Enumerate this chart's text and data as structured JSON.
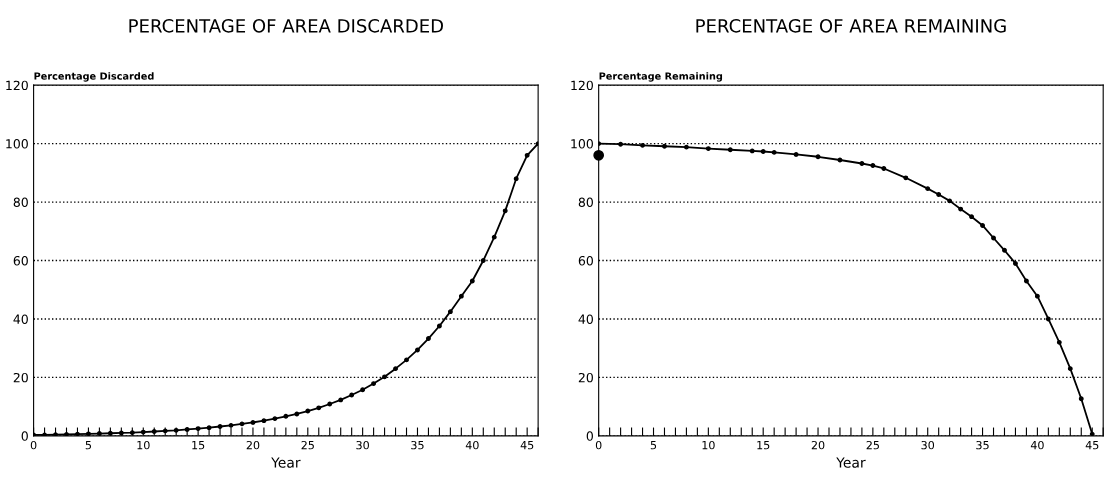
{
  "chart_data": [
    {
      "type": "line",
      "title": "PERCENTAGE OF AREA DISCARDED",
      "ylabel": "Percentage Discarded",
      "xlabel": "Year",
      "marker": "circle",
      "grid": "y",
      "xlim": [
        0,
        46
      ],
      "ylim": [
        0,
        120
      ],
      "xticks": [
        0,
        {
          "value": 1,
          "label": null
        },
        {
          "value": 2,
          "label": null
        },
        {
          "value": 3,
          "label": null
        },
        {
          "value": 4,
          "label": null
        },
        5,
        {
          "value": 6,
          "label": null
        },
        {
          "value": 7,
          "label": null
        },
        {
          "value": 8,
          "label": null
        },
        {
          "value": 9,
          "label": null
        },
        10,
        {
          "value": 11,
          "label": null
        },
        {
          "value": 12,
          "label": null
        },
        {
          "value": 13,
          "label": null
        },
        {
          "value": 14,
          "label": null
        },
        15,
        {
          "value": 16,
          "label": null
        },
        {
          "value": 17,
          "label": null
        },
        {
          "value": 18,
          "label": null
        },
        {
          "value": 19,
          "label": null
        },
        20,
        {
          "value": 21,
          "label": null
        },
        {
          "value": 22,
          "label": null
        },
        {
          "value": 23,
          "label": null
        },
        {
          "value": 24,
          "label": null
        },
        25,
        {
          "value": 26,
          "label": null
        },
        {
          "value": 27,
          "label": null
        },
        {
          "value": 28,
          "label": null
        },
        {
          "value": 29,
          "label": null
        },
        30,
        {
          "value": 31,
          "label": null
        },
        {
          "value": 32,
          "label": null
        },
        {
          "value": 33,
          "label": null
        },
        {
          "value": 34,
          "label": null
        },
        35,
        {
          "value": 36,
          "label": null
        },
        {
          "value": 37,
          "label": null
        },
        {
          "value": 38,
          "label": null
        },
        {
          "value": 39,
          "label": null
        },
        40,
        {
          "value": 41,
          "label": null
        },
        {
          "value": 42,
          "label": null
        },
        {
          "value": 43,
          "label": null
        },
        {
          "value": 44,
          "label": null
        },
        45,
        {
          "value": 46,
          "label": null
        }
      ],
      "yticks": [
        0,
        20,
        40,
        60,
        80,
        100,
        120
      ],
      "series": [
        {
          "color": "#000000",
          "x": [
            0,
            1,
            2,
            3,
            4,
            5,
            6,
            7,
            8,
            9,
            10,
            11,
            12,
            13,
            14,
            15,
            16,
            17,
            18,
            19,
            20,
            21,
            22,
            23,
            24,
            25,
            26,
            27,
            28,
            29,
            30,
            31,
            32,
            33,
            34,
            35,
            36,
            37,
            38,
            39,
            40,
            41,
            42,
            43,
            44,
            45,
            46
          ],
          "values": [
            0.3,
            0.3,
            0.4,
            0.5,
            0.6,
            0.7,
            0.8,
            0.9,
            1,
            1.1,
            1.3,
            1.5,
            1.7,
            1.9,
            2.2,
            2.5,
            2.8,
            3.2,
            3.6,
            4.1,
            4.6,
            5.2,
            5.9,
            6.7,
            7.5,
            8.5,
            9.6,
            10.9,
            12.3,
            14,
            15.8,
            17.9,
            20.2,
            23,
            26,
            29.4,
            33.3,
            37.6,
            42.5,
            47.8,
            53,
            60,
            68,
            77,
            88,
            96,
            100
          ]
        }
      ]
    },
    {
      "type": "line",
      "title": "PERCENTAGE OF AREA REMAINING",
      "ylabel": "Percentage Remaining",
      "xlabel": "Year",
      "marker": "circle",
      "grid": "y",
      "xlim": [
        0,
        46
      ],
      "ylim": [
        0,
        120
      ],
      "xticks": [
        0,
        {
          "value": 1,
          "label": null
        },
        {
          "value": 2,
          "label": null
        },
        {
          "value": 3,
          "label": null
        },
        {
          "value": 4,
          "label": null
        },
        5,
        {
          "value": 6,
          "label": null
        },
        {
          "value": 7,
          "label": null
        },
        {
          "value": 8,
          "label": null
        },
        {
          "value": 9,
          "label": null
        },
        10,
        {
          "value": 11,
          "label": null
        },
        {
          "value": 12,
          "label": null
        },
        {
          "value": 13,
          "label": null
        },
        {
          "value": 14,
          "label": null
        },
        15,
        {
          "value": 16,
          "label": null
        },
        {
          "value": 17,
          "label": null
        },
        {
          "value": 18,
          "label": null
        },
        {
          "value": 19,
          "label": null
        },
        20,
        {
          "value": 21,
          "label": null
        },
        {
          "value": 22,
          "label": null
        },
        {
          "value": 23,
          "label": null
        },
        {
          "value": 24,
          "label": null
        },
        25,
        {
          "value": 26,
          "label": null
        },
        {
          "value": 27,
          "label": null
        },
        {
          "value": 28,
          "label": null
        },
        {
          "value": 29,
          "label": null
        },
        30,
        {
          "value": 31,
          "label": null
        },
        {
          "value": 32,
          "label": null
        },
        {
          "value": 33,
          "label": null
        },
        {
          "value": 34,
          "label": null
        },
        35,
        {
          "value": 36,
          "label": null
        },
        {
          "value": 37,
          "label": null
        },
        {
          "value": 38,
          "label": null
        },
        {
          "value": 39,
          "label": null
        },
        40,
        {
          "value": 41,
          "label": null
        },
        {
          "value": 42,
          "label": null
        },
        {
          "value": 43,
          "label": null
        },
        {
          "value": 44,
          "label": null
        },
        45,
        {
          "value": 46,
          "label": null
        }
      ],
      "yticks": [
        0,
        20,
        40,
        60,
        80,
        100,
        120
      ],
      "series": [
        {
          "color": "#000000",
          "x": [
            0,
            2,
            4,
            6,
            8,
            10,
            12,
            14,
            15,
            16,
            18,
            20,
            22,
            24,
            25,
            26,
            28,
            30,
            31,
            32,
            33,
            34,
            35,
            36,
            37,
            38,
            39,
            40,
            41,
            42,
            43,
            44,
            45
          ],
          "values": [
            100,
            99.8,
            99.4,
            99.1,
            98.8,
            98.3,
            97.9,
            97.5,
            97.3,
            97,
            96.3,
            95.5,
            94.4,
            93.2,
            92.5,
            91.5,
            88.3,
            84.6,
            82.6,
            80.4,
            77.6,
            75,
            72,
            67.7,
            63.5,
            59,
            53,
            47.8,
            40,
            32,
            23,
            12.7,
            0.6
          ]
        },
        {
          "type": "scatter",
          "color": "#000000",
          "x": [
            0
          ],
          "values": [
            96
          ]
        }
      ]
    }
  ]
}
